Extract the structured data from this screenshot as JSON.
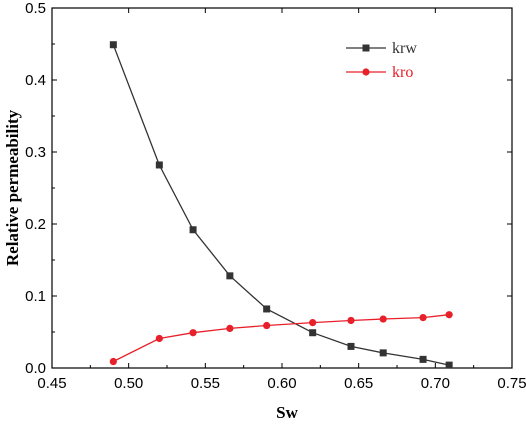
{
  "chart_data": {
    "type": "line",
    "title": "",
    "xlabel": "Sw",
    "ylabel": "Relative permeability",
    "xlim": [
      0.45,
      0.75
    ],
    "ylim": [
      0,
      0.5
    ],
    "xticks": [
      "0.45",
      "0.50",
      "0.55",
      "0.60",
      "0.65",
      "0.70",
      "0.75"
    ],
    "yticks": [
      "0.0",
      "0.1",
      "0.2",
      "0.3",
      "0.4",
      "0.5"
    ],
    "x": [
      0.49,
      0.52,
      0.542,
      0.566,
      0.59,
      0.62,
      0.645,
      0.666,
      0.692,
      0.709
    ],
    "series": [
      {
        "name": "krw",
        "marker": "square",
        "color": "#333333",
        "values": [
          0.449,
          0.282,
          0.192,
          0.128,
          0.082,
          0.049,
          0.03,
          0.021,
          0.012,
          0.004
        ]
      },
      {
        "name": "kro",
        "marker": "circle",
        "color": "#e8202a",
        "values": [
          0.009,
          0.041,
          0.049,
          0.055,
          0.059,
          0.063,
          0.066,
          0.068,
          0.07,
          0.074
        ]
      }
    ],
    "legend_position": "top-right",
    "grid": false
  }
}
